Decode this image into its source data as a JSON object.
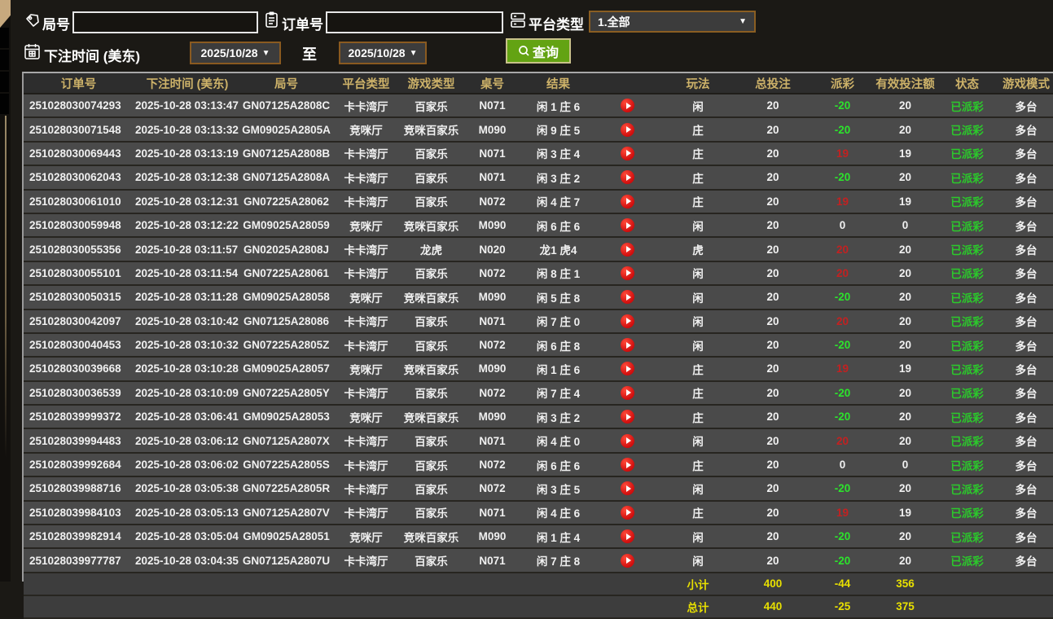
{
  "filters": {
    "game_no_label": "局号",
    "game_no_value": "",
    "order_no_label": "订单号",
    "order_no_value": "",
    "platform_label": "平台类型",
    "platform_value": "1.全部",
    "bet_time_label": "下注时间 (美东)",
    "date_from": "2025/10/28",
    "to_label": "至",
    "date_to": "2025/10/28",
    "query_label": "查询"
  },
  "icons": {
    "game_no": "tag-icon",
    "order_no": "clipboard-icon",
    "platform": "server-stack-icon",
    "bet_time": "calendar-icon",
    "query": "magnifier-icon",
    "replay": "play-icon"
  },
  "colors": {
    "header_text_gold": "#cdb269",
    "payout_win_red": "#c22121",
    "payout_lose_green": "#2ce42c",
    "status_green": "#2bc92b",
    "summary_yellow": "#e8e000",
    "query_button_green": "#63a313",
    "date_border_brown": "#8a5a20"
  },
  "table": {
    "headers": [
      "订单号",
      "下注时间 (美东)",
      "局号",
      "平台类型",
      "游戏类型",
      "桌号",
      "结果",
      "",
      "玩法",
      "总投注",
      "派彩",
      "有效投注额",
      "状态",
      "游戏模式"
    ],
    "rows": [
      {
        "order_no": "251028030074293",
        "bet_time": "2025-10-28 03:13:47",
        "game_no": "GN07125A2808C",
        "platform": "卡卡湾厅",
        "game_type": "百家乐",
        "table_no": "N071",
        "result": "闲 1 庄 6",
        "bet_on": "闲",
        "total_bet": "20",
        "payout": "-20",
        "payout_color": "green",
        "valid_bet": "20",
        "status": "已派彩",
        "mode": "多台"
      },
      {
        "order_no": "251028030071548",
        "bet_time": "2025-10-28 03:13:32",
        "game_no": "GM09025A2805A",
        "platform": "竞咪厅",
        "game_type": "竞咪百家乐",
        "table_no": "M090",
        "result": "闲 9 庄 5",
        "bet_on": "庄",
        "total_bet": "20",
        "payout": "-20",
        "payout_color": "green",
        "valid_bet": "20",
        "status": "已派彩",
        "mode": "多台"
      },
      {
        "order_no": "251028030069443",
        "bet_time": "2025-10-28 03:13:19",
        "game_no": "GN07125A2808B",
        "platform": "卡卡湾厅",
        "game_type": "百家乐",
        "table_no": "N071",
        "result": "闲 3 庄 4",
        "bet_on": "庄",
        "total_bet": "20",
        "payout": "19",
        "payout_color": "red",
        "valid_bet": "19",
        "status": "已派彩",
        "mode": "多台"
      },
      {
        "order_no": "251028030062043",
        "bet_time": "2025-10-28 03:12:38",
        "game_no": "GN07125A2808A",
        "platform": "卡卡湾厅",
        "game_type": "百家乐",
        "table_no": "N071",
        "result": "闲 3 庄 2",
        "bet_on": "庄",
        "total_bet": "20",
        "payout": "-20",
        "payout_color": "green",
        "valid_bet": "20",
        "status": "已派彩",
        "mode": "多台"
      },
      {
        "order_no": "251028030061010",
        "bet_time": "2025-10-28 03:12:31",
        "game_no": "GN07225A28062",
        "platform": "卡卡湾厅",
        "game_type": "百家乐",
        "table_no": "N072",
        "result": "闲 4 庄 7",
        "bet_on": "庄",
        "total_bet": "20",
        "payout": "19",
        "payout_color": "red",
        "valid_bet": "19",
        "status": "已派彩",
        "mode": "多台"
      },
      {
        "order_no": "251028030059948",
        "bet_time": "2025-10-28 03:12:22",
        "game_no": "GM09025A28059",
        "platform": "竞咪厅",
        "game_type": "竞咪百家乐",
        "table_no": "M090",
        "result": "闲 6 庄 6",
        "bet_on": "闲",
        "total_bet": "20",
        "payout": "0",
        "payout_color": "white",
        "valid_bet": "0",
        "status": "已派彩",
        "mode": "多台"
      },
      {
        "order_no": "251028030055356",
        "bet_time": "2025-10-28 03:11:57",
        "game_no": "GN02025A2808J",
        "platform": "卡卡湾厅",
        "game_type": "龙虎",
        "table_no": "N020",
        "result": "龙1 虎4",
        "bet_on": "虎",
        "total_bet": "20",
        "payout": "20",
        "payout_color": "red",
        "valid_bet": "20",
        "status": "已派彩",
        "mode": "多台"
      },
      {
        "order_no": "251028030055101",
        "bet_time": "2025-10-28 03:11:54",
        "game_no": "GN07225A28061",
        "platform": "卡卡湾厅",
        "game_type": "百家乐",
        "table_no": "N072",
        "result": "闲 8 庄 1",
        "bet_on": "闲",
        "total_bet": "20",
        "payout": "20",
        "payout_color": "red",
        "valid_bet": "20",
        "status": "已派彩",
        "mode": "多台"
      },
      {
        "order_no": "251028030050315",
        "bet_time": "2025-10-28 03:11:28",
        "game_no": "GM09025A28058",
        "platform": "竞咪厅",
        "game_type": "竞咪百家乐",
        "table_no": "M090",
        "result": "闲 5 庄 8",
        "bet_on": "闲",
        "total_bet": "20",
        "payout": "-20",
        "payout_color": "green",
        "valid_bet": "20",
        "status": "已派彩",
        "mode": "多台"
      },
      {
        "order_no": "251028030042097",
        "bet_time": "2025-10-28 03:10:42",
        "game_no": "GN07125A28086",
        "platform": "卡卡湾厅",
        "game_type": "百家乐",
        "table_no": "N071",
        "result": "闲 7 庄 0",
        "bet_on": "闲",
        "total_bet": "20",
        "payout": "20",
        "payout_color": "red",
        "valid_bet": "20",
        "status": "已派彩",
        "mode": "多台"
      },
      {
        "order_no": "251028030040453",
        "bet_time": "2025-10-28 03:10:32",
        "game_no": "GN07225A2805Z",
        "platform": "卡卡湾厅",
        "game_type": "百家乐",
        "table_no": "N072",
        "result": "闲 6 庄 8",
        "bet_on": "闲",
        "total_bet": "20",
        "payout": "-20",
        "payout_color": "green",
        "valid_bet": "20",
        "status": "已派彩",
        "mode": "多台"
      },
      {
        "order_no": "251028030039668",
        "bet_time": "2025-10-28 03:10:28",
        "game_no": "GM09025A28057",
        "platform": "竞咪厅",
        "game_type": "竞咪百家乐",
        "table_no": "M090",
        "result": "闲 1 庄 6",
        "bet_on": "庄",
        "total_bet": "20",
        "payout": "19",
        "payout_color": "red",
        "valid_bet": "19",
        "status": "已派彩",
        "mode": "多台"
      },
      {
        "order_no": "251028030036539",
        "bet_time": "2025-10-28 03:10:09",
        "game_no": "GN07225A2805Y",
        "platform": "卡卡湾厅",
        "game_type": "百家乐",
        "table_no": "N072",
        "result": "闲 7 庄 4",
        "bet_on": "庄",
        "total_bet": "20",
        "payout": "-20",
        "payout_color": "green",
        "valid_bet": "20",
        "status": "已派彩",
        "mode": "多台"
      },
      {
        "order_no": "251028039999372",
        "bet_time": "2025-10-28 03:06:41",
        "game_no": "GM09025A28053",
        "platform": "竞咪厅",
        "game_type": "竞咪百家乐",
        "table_no": "M090",
        "result": "闲 3 庄 2",
        "bet_on": "庄",
        "total_bet": "20",
        "payout": "-20",
        "payout_color": "green",
        "valid_bet": "20",
        "status": "已派彩",
        "mode": "多台"
      },
      {
        "order_no": "251028039994483",
        "bet_time": "2025-10-28 03:06:12",
        "game_no": "GN07125A2807X",
        "platform": "卡卡湾厅",
        "game_type": "百家乐",
        "table_no": "N071",
        "result": "闲 4 庄 0",
        "bet_on": "闲",
        "total_bet": "20",
        "payout": "20",
        "payout_color": "red",
        "valid_bet": "20",
        "status": "已派彩",
        "mode": "多台"
      },
      {
        "order_no": "251028039992684",
        "bet_time": "2025-10-28 03:06:02",
        "game_no": "GN07225A2805S",
        "platform": "卡卡湾厅",
        "game_type": "百家乐",
        "table_no": "N072",
        "result": "闲 6 庄 6",
        "bet_on": "庄",
        "total_bet": "20",
        "payout": "0",
        "payout_color": "white",
        "valid_bet": "0",
        "status": "已派彩",
        "mode": "多台"
      },
      {
        "order_no": "251028039988716",
        "bet_time": "2025-10-28 03:05:38",
        "game_no": "GN07225A2805R",
        "platform": "卡卡湾厅",
        "game_type": "百家乐",
        "table_no": "N072",
        "result": "闲 3 庄 5",
        "bet_on": "闲",
        "total_bet": "20",
        "payout": "-20",
        "payout_color": "green",
        "valid_bet": "20",
        "status": "已派彩",
        "mode": "多台"
      },
      {
        "order_no": "251028039984103",
        "bet_time": "2025-10-28 03:05:13",
        "game_no": "GN07125A2807V",
        "platform": "卡卡湾厅",
        "game_type": "百家乐",
        "table_no": "N071",
        "result": "闲 4 庄 6",
        "bet_on": "庄",
        "total_bet": "20",
        "payout": "19",
        "payout_color": "red",
        "valid_bet": "19",
        "status": "已派彩",
        "mode": "多台"
      },
      {
        "order_no": "251028039982914",
        "bet_time": "2025-10-28 03:05:04",
        "game_no": "GM09025A28051",
        "platform": "竞咪厅",
        "game_type": "竞咪百家乐",
        "table_no": "M090",
        "result": "闲 1 庄 4",
        "bet_on": "闲",
        "total_bet": "20",
        "payout": "-20",
        "payout_color": "green",
        "valid_bet": "20",
        "status": "已派彩",
        "mode": "多台"
      },
      {
        "order_no": "251028039977787",
        "bet_time": "2025-10-28 03:04:35",
        "game_no": "GN07125A2807U",
        "platform": "卡卡湾厅",
        "game_type": "百家乐",
        "table_no": "N071",
        "result": "闲 7 庄 8",
        "bet_on": "闲",
        "total_bet": "20",
        "payout": "-20",
        "payout_color": "green",
        "valid_bet": "20",
        "status": "已派彩",
        "mode": "多台"
      }
    ],
    "subtotal": {
      "label": "小计",
      "total_bet": "400",
      "payout": "-44",
      "valid_bet": "356"
    },
    "total": {
      "label": "总计",
      "total_bet": "440",
      "payout": "-25",
      "valid_bet": "375"
    }
  }
}
